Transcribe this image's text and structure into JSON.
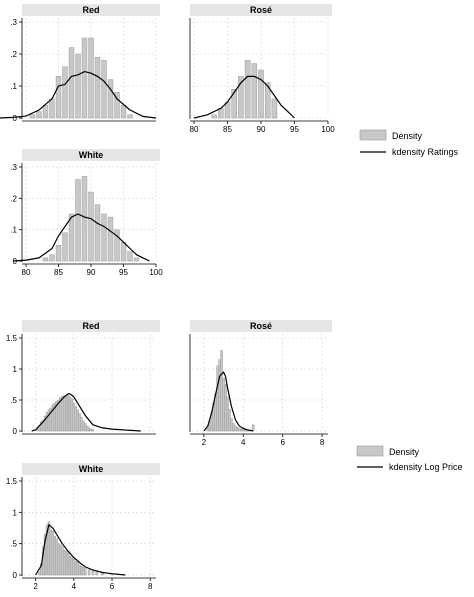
{
  "chart_data": [
    {
      "type": "bar",
      "panel": "Red",
      "x_bars": [
        81,
        82,
        83,
        84,
        85,
        86,
        87,
        88,
        89,
        90,
        91,
        92,
        93,
        94,
        95,
        96
      ],
      "density": [
        0.01,
        0.02,
        0.04,
        0.06,
        0.13,
        0.16,
        0.22,
        0.2,
        0.25,
        0.25,
        0.19,
        0.18,
        0.12,
        0.08,
        0.04,
        0.01
      ],
      "kdensity_x": [
        76,
        78,
        80,
        82,
        84,
        85,
        86,
        87,
        88,
        89,
        90,
        91,
        92,
        93,
        94,
        96,
        98,
        100
      ],
      "kdensity_y": [
        0,
        0.002,
        0.006,
        0.025,
        0.06,
        0.1,
        0.105,
        0.13,
        0.135,
        0.145,
        0.14,
        0.13,
        0.115,
        0.09,
        0.06,
        0.025,
        0.005,
        0
      ],
      "xlim": [
        80,
        100
      ],
      "ylim": [
        0,
        0.3
      ],
      "yticks": [
        "0",
        ".1",
        ".2",
        ".3"
      ],
      "xticks": []
    },
    {
      "type": "bar",
      "panel": "Rosé",
      "x_bars": [
        83,
        84,
        85,
        86,
        87,
        88,
        89,
        90,
        91,
        92
      ],
      "density": [
        0.01,
        0.03,
        0.05,
        0.09,
        0.13,
        0.18,
        0.17,
        0.15,
        0.11,
        0.06
      ],
      "kdensity_x": [
        80,
        82,
        83,
        84,
        85,
        86,
        87,
        88,
        89,
        90,
        91,
        92,
        93,
        94,
        95
      ],
      "kdensity_y": [
        0,
        0.01,
        0.02,
        0.03,
        0.05,
        0.08,
        0.11,
        0.13,
        0.13,
        0.12,
        0.1,
        0.07,
        0.04,
        0.02,
        0
      ],
      "xlim": [
        80,
        100
      ],
      "ylim": [
        0,
        0.3
      ],
      "yticks": [],
      "xticks": [
        "80",
        "85",
        "90",
        "95",
        "100"
      ]
    },
    {
      "type": "bar",
      "panel": "White",
      "x_bars": [
        83,
        84,
        85,
        86,
        87,
        88,
        89,
        90,
        91,
        92,
        93,
        94,
        95,
        96,
        97
      ],
      "density": [
        0.01,
        0.02,
        0.05,
        0.09,
        0.15,
        0.26,
        0.27,
        0.22,
        0.18,
        0.15,
        0.14,
        0.1,
        0.06,
        0.03,
        0.01
      ],
      "kdensity_x": [
        78,
        80,
        82,
        84,
        85,
        86,
        87,
        88,
        89,
        90,
        91,
        92,
        93,
        94,
        95,
        96,
        97,
        98,
        99
      ],
      "kdensity_y": [
        0,
        0.003,
        0.01,
        0.04,
        0.08,
        0.11,
        0.14,
        0.15,
        0.14,
        0.135,
        0.12,
        0.11,
        0.095,
        0.08,
        0.06,
        0.04,
        0.02,
        0.01,
        0
      ],
      "xlim": [
        80,
        100
      ],
      "ylim": [
        0,
        0.3
      ],
      "yticks": [
        "0",
        ".1",
        ".2",
        ".3"
      ],
      "xticks": [
        "80",
        "85",
        "90",
        "95",
        "100"
      ]
    },
    {
      "type": "bar",
      "panel": "Red",
      "x_bars": [
        2.1,
        2.2,
        2.3,
        2.4,
        2.5,
        2.6,
        2.7,
        2.8,
        2.9,
        3.0,
        3.1,
        3.2,
        3.3,
        3.4,
        3.5,
        3.6,
        3.7,
        3.8,
        3.9,
        4.0,
        4.1,
        4.2,
        4.3,
        4.4,
        4.5,
        4.6,
        4.7,
        4.8,
        4.9,
        5.0
      ],
      "density": [
        0.03,
        0.08,
        0.15,
        0.18,
        0.24,
        0.3,
        0.34,
        0.37,
        0.42,
        0.45,
        0.48,
        0.5,
        0.54,
        0.56,
        0.57,
        0.56,
        0.6,
        0.55,
        0.52,
        0.45,
        0.4,
        0.34,
        0.28,
        0.22,
        0.16,
        0.12,
        0.08,
        0.05,
        0.03,
        0.02
      ],
      "kdensity_x": [
        1.8,
        2.0,
        2.4,
        2.8,
        3.2,
        3.5,
        3.7,
        3.8,
        4.0,
        4.2,
        4.6,
        5.0,
        5.5,
        6.0,
        7.0,
        7.5
      ],
      "kdensity_y": [
        0,
        0.02,
        0.15,
        0.3,
        0.45,
        0.55,
        0.6,
        0.6,
        0.55,
        0.45,
        0.25,
        0.1,
        0.05,
        0.03,
        0.01,
        0
      ],
      "xlim": [
        1.5,
        8.3
      ],
      "ylim": [
        0,
        1.5
      ],
      "yticks": [
        "0",
        ".5",
        "1",
        "1.5"
      ],
      "xticks": []
    },
    {
      "type": "bar",
      "panel": "Rosé",
      "x_bars": [
        2.2,
        2.3,
        2.4,
        2.5,
        2.6,
        2.7,
        2.8,
        2.9,
        3.0,
        3.1,
        3.2,
        3.3,
        3.4,
        3.5,
        3.6,
        3.7,
        3.8,
        3.9,
        4.0,
        4.1,
        4.2,
        4.3,
        4.5
      ],
      "density": [
        0.05,
        0.15,
        0.3,
        0.45,
        0.6,
        1.05,
        1.15,
        1.3,
        0.85,
        0.75,
        0.55,
        0.35,
        0.2,
        0.12,
        0.08,
        0.06,
        0.04,
        0.03,
        0.05,
        0.03,
        0.02,
        0.02,
        0.1
      ],
      "kdensity_x": [
        2.0,
        2.2,
        2.4,
        2.6,
        2.8,
        2.9,
        3.0,
        3.1,
        3.2,
        3.4,
        3.6,
        3.8,
        4.0,
        4.2,
        4.5
      ],
      "kdensity_y": [
        0,
        0.08,
        0.3,
        0.6,
        0.88,
        0.92,
        0.95,
        0.88,
        0.7,
        0.4,
        0.18,
        0.08,
        0.04,
        0.02,
        0
      ],
      "xlim": [
        1.5,
        8.3
      ],
      "ylim": [
        0,
        1.5
      ],
      "yticks": [],
      "xticks": [
        "2",
        "4",
        "6",
        "8"
      ]
    },
    {
      "type": "bar",
      "panel": "White",
      "x_bars": [
        2.2,
        2.3,
        2.4,
        2.5,
        2.6,
        2.7,
        2.8,
        2.9,
        3.0,
        3.1,
        3.2,
        3.3,
        3.4,
        3.5,
        3.6,
        3.7,
        3.8,
        3.9,
        4.0,
        4.1,
        4.2,
        4.3,
        4.4,
        4.5,
        4.6,
        4.8,
        5.0,
        5.2,
        5.5,
        6.0
      ],
      "density": [
        0.05,
        0.18,
        0.45,
        0.65,
        0.8,
        0.85,
        0.72,
        0.7,
        0.62,
        0.58,
        0.5,
        0.48,
        0.45,
        0.4,
        0.38,
        0.35,
        0.3,
        0.28,
        0.25,
        0.22,
        0.2,
        0.16,
        0.14,
        0.12,
        0.1,
        0.08,
        0.06,
        0.04,
        0.03,
        0.02
      ],
      "kdensity_x": [
        2.0,
        2.3,
        2.5,
        2.7,
        2.9,
        3.1,
        3.4,
        3.7,
        4.0,
        4.3,
        4.6,
        5.0,
        5.5,
        6.0,
        6.7
      ],
      "kdensity_y": [
        0,
        0.15,
        0.55,
        0.8,
        0.75,
        0.65,
        0.5,
        0.38,
        0.28,
        0.2,
        0.13,
        0.08,
        0.04,
        0.02,
        0
      ],
      "xlim": [
        1.5,
        8.3
      ],
      "ylim": [
        0,
        1.5
      ],
      "yticks": [
        "0",
        ".5",
        "1",
        "1.5"
      ],
      "xticks": [
        "2",
        "4",
        "6",
        "8"
      ]
    }
  ],
  "legend_top": {
    "bar_label": "Density",
    "line_label": "kdensity Ratings"
  },
  "legend_bottom": {
    "bar_label": "Density",
    "line_label": "kdensity Log Price"
  },
  "colors": {
    "bar_fill": "#c8c8c8",
    "strip": "#e6e6e6",
    "line": "#000000"
  }
}
